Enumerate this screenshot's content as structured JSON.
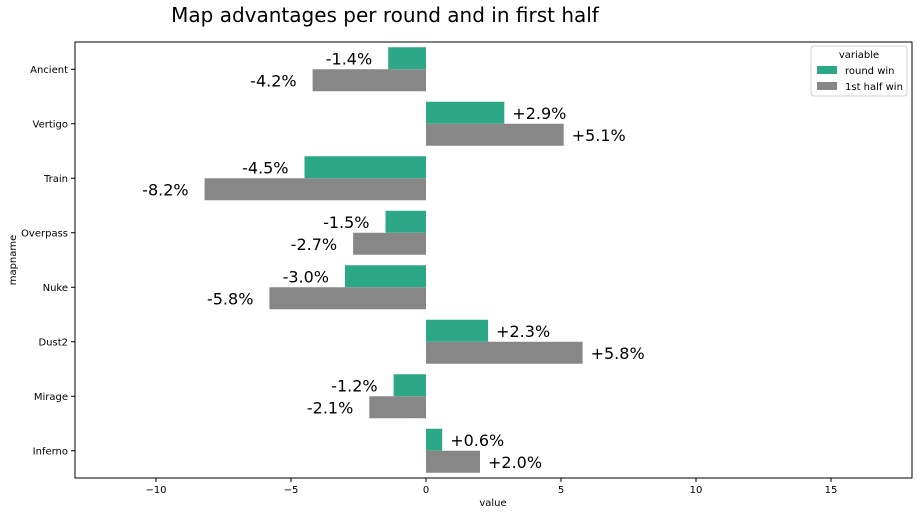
{
  "chart_data": {
    "type": "bar",
    "orientation": "horizontal",
    "title": "Map advantages per round and in first half",
    "xlabel": "value",
    "ylabel": "mapname",
    "xlim": [
      -13,
      18
    ],
    "xticks": [
      -10,
      -5,
      0,
      5,
      10,
      15
    ],
    "xtick_labels": [
      "−10",
      "−5",
      "0",
      "5",
      "10",
      "15"
    ],
    "grid": false,
    "legend": {
      "title": "variable",
      "placement": "top-right"
    },
    "categories": [
      "Ancient",
      "Vertigo",
      "Train",
      "Overpass",
      "Nuke",
      "Dust2",
      "Mirage",
      "Inferno"
    ],
    "series": [
      {
        "name": "round win",
        "color": "#2ca886",
        "values": [
          -1.4,
          2.9,
          -4.5,
          -1.5,
          -3.0,
          2.3,
          -1.2,
          0.6
        ],
        "labels": [
          "-1.4%",
          "+2.9%",
          "-4.5%",
          "-1.5%",
          "-3.0%",
          "+2.3%",
          "-1.2%",
          "+0.6%"
        ]
      },
      {
        "name": "1st half win",
        "color": "#878787",
        "values": [
          -4.2,
          5.1,
          -8.2,
          -2.7,
          -5.8,
          5.8,
          -2.1,
          2.0
        ],
        "labels": [
          "-4.2%",
          "+5.1%",
          "-8.2%",
          "-2.7%",
          "-5.8%",
          "+5.8%",
          "-2.1%",
          "+2.0%"
        ]
      }
    ]
  }
}
